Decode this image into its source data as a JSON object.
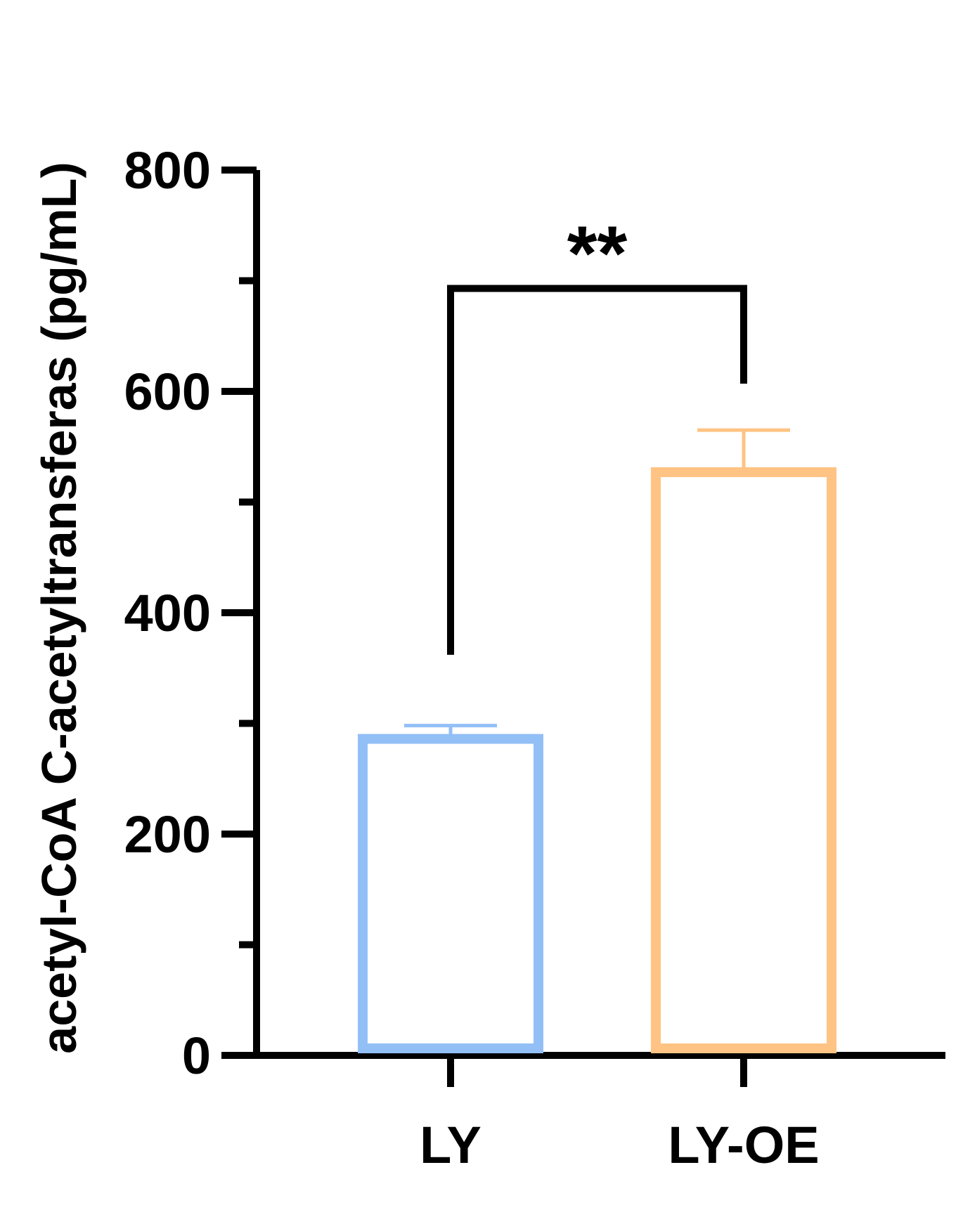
{
  "chart_data": {
    "type": "bar",
    "title": "",
    "xlabel": "",
    "ylabel": "acetyl-CoA C-acetyltransferas (pg/mL)",
    "categories": [
      "LY",
      "LY-OE"
    ],
    "values": [
      286,
      527
    ],
    "errors": [
      12,
      38
    ],
    "colors": [
      "#93bff7",
      "#ffc383"
    ],
    "ylim": [
      0,
      800
    ],
    "yticks": [
      0,
      200,
      400,
      600,
      800
    ],
    "yticks_labels": [
      "0",
      "200",
      "400",
      "600",
      "800"
    ],
    "minor_ticks": [
      100,
      300,
      500,
      700
    ],
    "grid": false,
    "legend": "none",
    "significance": {
      "between": [
        "LY",
        "LY-OE"
      ],
      "label": "**",
      "bracket_y": 693,
      "left_end": 362,
      "right_end": 607
    }
  }
}
